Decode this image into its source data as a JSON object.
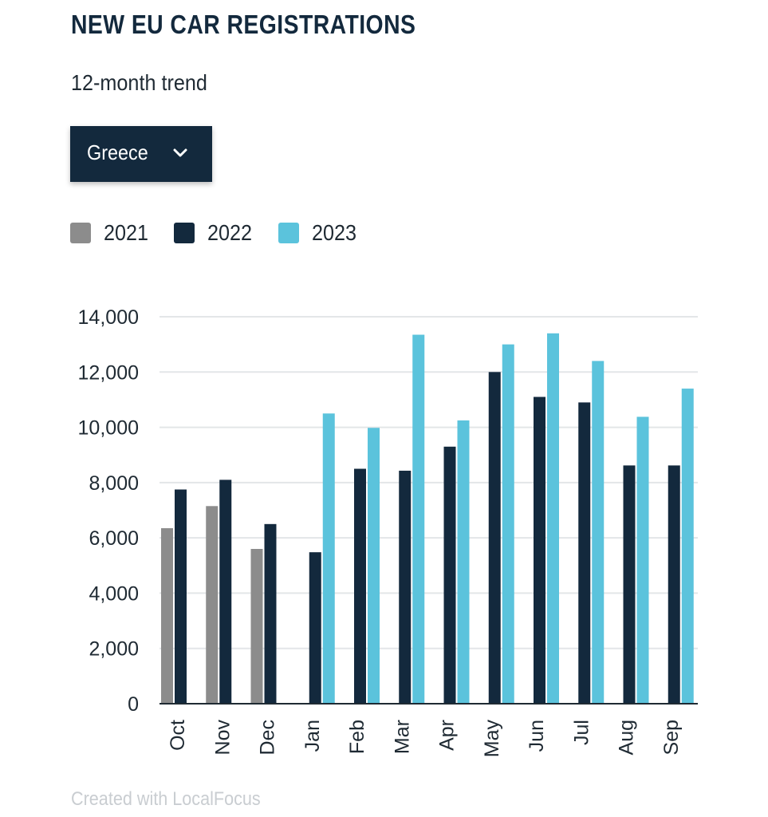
{
  "header": {
    "title": "NEW EU CAR REGISTRATIONS",
    "subtitle": "12-month trend"
  },
  "filter": {
    "selected": "Greece",
    "icon": "chevron-down-icon"
  },
  "legend": [
    {
      "label": "2021",
      "color": "#8c8c8c"
    },
    {
      "label": "2022",
      "color": "#13293d"
    },
    {
      "label": "2023",
      "color": "#5bc3dc"
    }
  ],
  "footer": {
    "credit": "Created with LocalFocus"
  },
  "chart_data": {
    "type": "bar",
    "title": "NEW EU CAR REGISTRATIONS",
    "subtitle": "12-month trend",
    "categories": [
      "Oct",
      "Nov",
      "Dec",
      "Jan",
      "Feb",
      "Mar",
      "Apr",
      "May",
      "Jun",
      "Jul",
      "Aug",
      "Sep"
    ],
    "series": [
      {
        "name": "2021",
        "color": "#8c8c8c",
        "values": [
          6350,
          7150,
          5600,
          null,
          null,
          null,
          null,
          null,
          null,
          null,
          null,
          null
        ]
      },
      {
        "name": "2022",
        "color": "#13293d",
        "values": [
          7750,
          8100,
          6500,
          5480,
          8500,
          8430,
          9300,
          12000,
          11100,
          10900,
          8620,
          8620
        ]
      },
      {
        "name": "2023",
        "color": "#5bc3dc",
        "values": [
          null,
          null,
          null,
          10500,
          9980,
          13350,
          10250,
          13000,
          13400,
          12400,
          10380,
          11400
        ]
      }
    ],
    "ylim": [
      0,
      14000
    ],
    "yticks": [
      0,
      2000,
      4000,
      6000,
      8000,
      10000,
      12000,
      14000
    ],
    "ytick_labels": [
      "0",
      "2,000",
      "4,000",
      "6,000",
      "8,000",
      "10,000",
      "12,000",
      "14,000"
    ],
    "grid": true,
    "legend_position": "top-left"
  }
}
